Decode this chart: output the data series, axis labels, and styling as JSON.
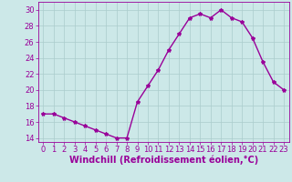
{
  "x": [
    0,
    1,
    2,
    3,
    4,
    5,
    6,
    7,
    8,
    9,
    10,
    11,
    12,
    13,
    14,
    15,
    16,
    17,
    18,
    19,
    20,
    21,
    22,
    23
  ],
  "y": [
    17,
    17,
    16.5,
    16,
    15.5,
    15,
    14.5,
    14,
    14,
    18.5,
    20.5,
    22.5,
    25,
    27,
    29,
    29.5,
    29,
    30,
    29,
    28.5,
    26.5,
    23.5,
    21,
    20
  ],
  "line_color": "#990099",
  "marker": "*",
  "marker_size": 3,
  "background_color": "#cce8e8",
  "grid_color": "#aacccc",
  "xlabel": "Windchill (Refroidissement éolien,°C)",
  "xlabel_color": "#990099",
  "xlabel_fontsize": 7,
  "tick_color": "#990099",
  "tick_fontsize": 6,
  "ylim": [
    13.5,
    31
  ],
  "yticks": [
    14,
    16,
    18,
    20,
    22,
    24,
    26,
    28,
    30
  ],
  "xlim": [
    -0.5,
    23.5
  ],
  "xticks": [
    0,
    1,
    2,
    3,
    4,
    5,
    6,
    7,
    8,
    9,
    10,
    11,
    12,
    13,
    14,
    15,
    16,
    17,
    18,
    19,
    20,
    21,
    22,
    23
  ]
}
